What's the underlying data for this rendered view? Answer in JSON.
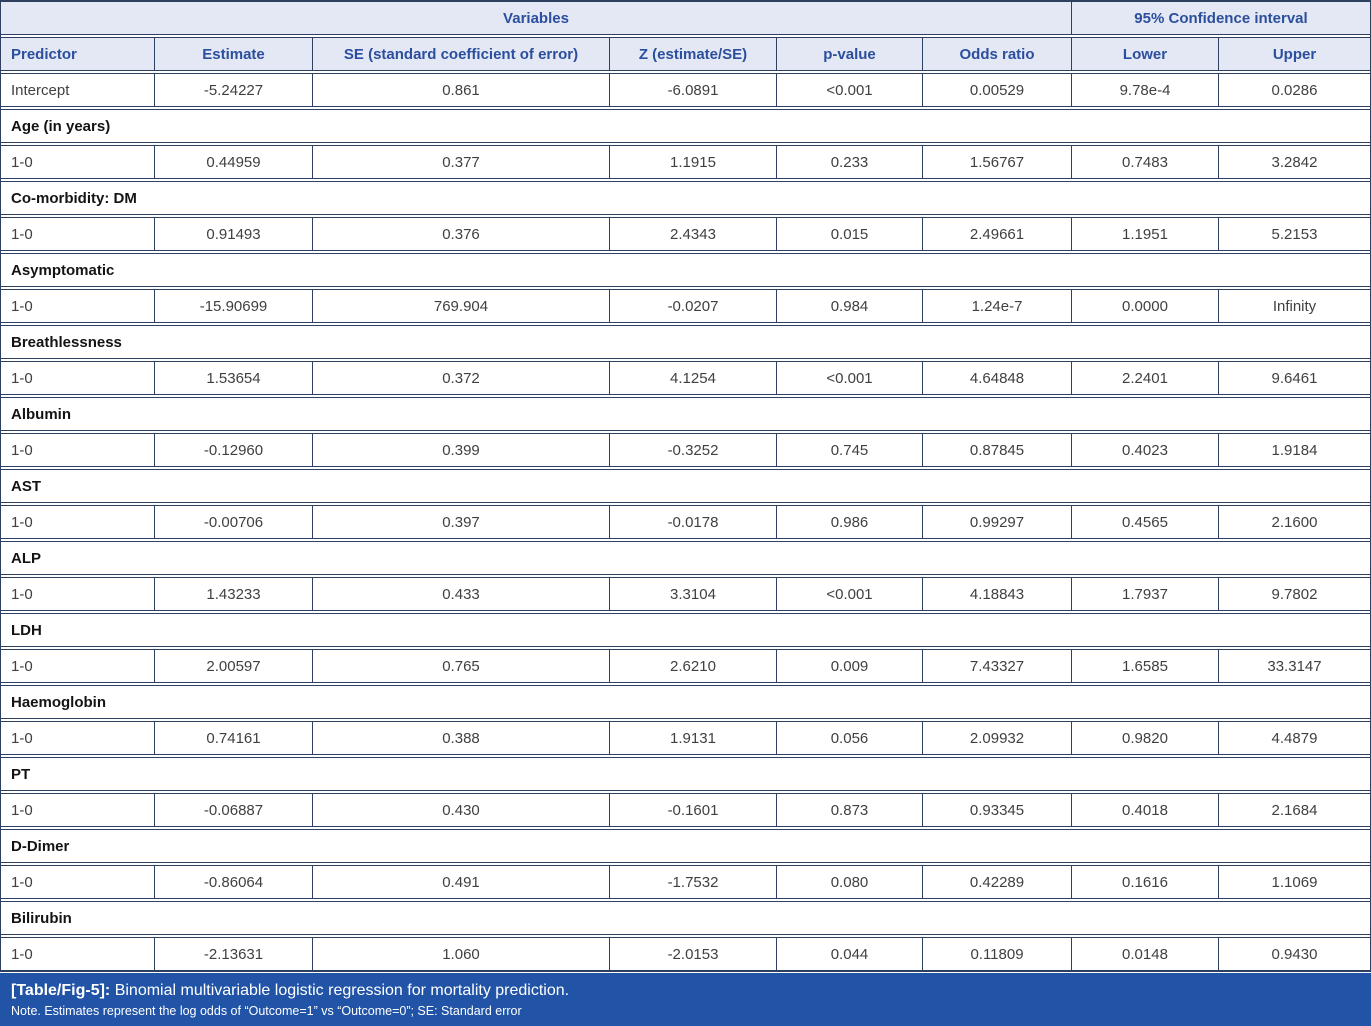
{
  "table": {
    "header_groups": {
      "variables": "Variables",
      "confidence_interval": "95% Confidence interval"
    },
    "columns": [
      "Predictor",
      "Estimate",
      "SE (standard coefficient of error)",
      "Z (estimate/SE)",
      "p-value",
      "Odds ratio",
      "Lower",
      "Upper"
    ],
    "rows": [
      {
        "type": "data",
        "cells": [
          "Intercept",
          "-5.24227",
          "0.861",
          "-6.0891",
          "<0.001",
          "0.00529",
          "9.78e-4",
          "0.0286"
        ]
      },
      {
        "type": "section",
        "label": "Age (in years)"
      },
      {
        "type": "data",
        "cells": [
          "1-0",
          "0.44959",
          "0.377",
          "1.1915",
          "0.233",
          "1.56767",
          "0.7483",
          "3.2842"
        ]
      },
      {
        "type": "section",
        "label": "Co-morbidity: DM"
      },
      {
        "type": "data",
        "cells": [
          "1-0",
          "0.91493",
          "0.376",
          "2.4343",
          "0.015",
          "2.49661",
          "1.1951",
          "5.2153"
        ]
      },
      {
        "type": "section",
        "label": "Asymptomatic"
      },
      {
        "type": "data",
        "cells": [
          "1-0",
          "-15.90699",
          "769.904",
          "-0.0207",
          "0.984",
          "1.24e-7",
          "0.0000",
          "Infinity"
        ]
      },
      {
        "type": "section",
        "label": "Breathlessness"
      },
      {
        "type": "data",
        "cells": [
          "1-0",
          "1.53654",
          "0.372",
          "4.1254",
          "<0.001",
          "4.64848",
          "2.2401",
          "9.6461"
        ]
      },
      {
        "type": "section",
        "label": "Albumin"
      },
      {
        "type": "data",
        "cells": [
          "1-0",
          "-0.12960",
          "0.399",
          "-0.3252",
          "0.745",
          "0.87845",
          "0.4023",
          "1.9184"
        ]
      },
      {
        "type": "section",
        "label": "AST"
      },
      {
        "type": "data",
        "cells": [
          "1-0",
          "-0.00706",
          "0.397",
          "-0.0178",
          "0.986",
          "0.99297",
          "0.4565",
          "2.1600"
        ]
      },
      {
        "type": "section",
        "label": "ALP"
      },
      {
        "type": "data",
        "cells": [
          "1-0",
          "1.43233",
          "0.433",
          "3.3104",
          "<0.001",
          "4.18843",
          "1.7937",
          "9.7802"
        ]
      },
      {
        "type": "section",
        "label": "LDH"
      },
      {
        "type": "data",
        "cells": [
          "1-0",
          "2.00597",
          "0.765",
          "2.6210",
          "0.009",
          "7.43327",
          "1.6585",
          "33.3147"
        ]
      },
      {
        "type": "section",
        "label": "Haemoglobin"
      },
      {
        "type": "data",
        "cells": [
          "1-0",
          "0.74161",
          "0.388",
          "1.9131",
          "0.056",
          "2.09932",
          "0.9820",
          "4.4879"
        ]
      },
      {
        "type": "section",
        "label": "PT"
      },
      {
        "type": "data",
        "cells": [
          "1-0",
          "-0.06887",
          "0.430",
          "-0.1601",
          "0.873",
          "0.93345",
          "0.4018",
          "2.1684"
        ]
      },
      {
        "type": "section",
        "label": "D-Dimer"
      },
      {
        "type": "data",
        "cells": [
          "1-0",
          "-0.86064",
          "0.491",
          "-1.7532",
          "0.080",
          "0.42289",
          "0.1616",
          "1.1069"
        ]
      },
      {
        "type": "section",
        "label": "Bilirubin"
      },
      {
        "type": "data",
        "cells": [
          "1-0",
          "-2.13631",
          "1.060",
          "-2.0153",
          "0.044",
          "0.11809",
          "0.0148",
          "0.9430"
        ]
      }
    ]
  },
  "caption": {
    "tag": "[Table/Fig-5]:",
    "title": " Binomial multivariable logistic regression for mortality prediction.",
    "note": "Note. Estimates represent the log odds of “Outcome=1” vs “Outcome=0”; SE: Standard error"
  },
  "colors": {
    "header_background": "#e4e8f4",
    "header_text": "#2b4f9d",
    "border": "#2e4060",
    "body_text": "#404040",
    "caption_background": "#2153a6",
    "caption_text": "#ffffff"
  }
}
